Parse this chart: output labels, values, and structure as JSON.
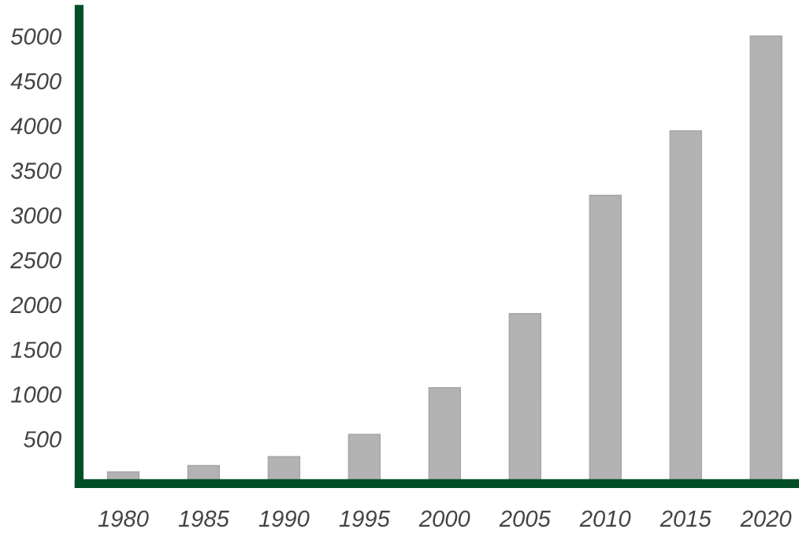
{
  "chart_data": {
    "type": "bar",
    "categories": [
      "1980",
      "1985",
      "1990",
      "1995",
      "2000",
      "2005",
      "2010",
      "2015",
      "2020"
    ],
    "values": [
      130,
      200,
      300,
      550,
      1070,
      1900,
      3220,
      3940,
      5000
    ],
    "color": "#b3b3b3",
    "ylim": [
      0,
      5300
    ],
    "yticks": [
      500,
      1000,
      1500,
      2000,
      2500,
      3000,
      3500,
      4000,
      4500,
      5000
    ],
    "grid": false,
    "legend": false
  }
}
